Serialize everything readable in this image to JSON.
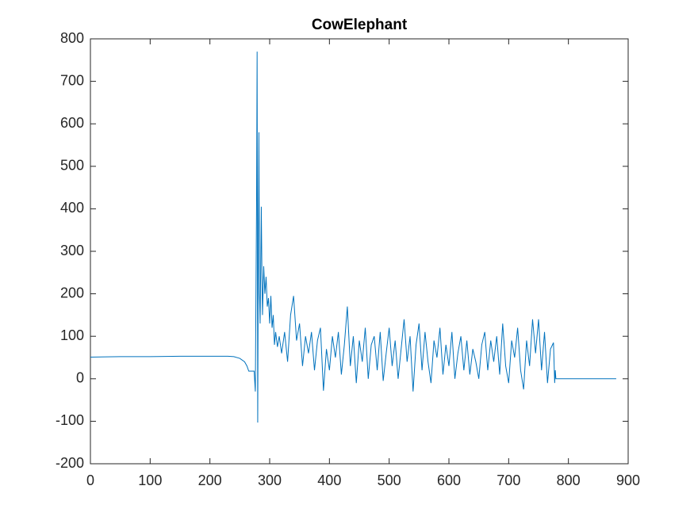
{
  "chart_data": {
    "type": "line",
    "title": "CowElephant",
    "x": [
      0,
      50,
      100,
      150,
      200,
      230,
      240,
      250,
      258,
      262,
      265,
      270,
      274,
      276,
      278,
      279,
      280,
      281,
      282,
      283,
      284,
      286,
      287,
      288,
      290,
      292,
      294,
      296,
      298,
      300,
      302,
      304,
      306,
      308,
      310,
      313,
      316,
      320,
      325,
      330,
      335,
      340,
      345,
      350,
      355,
      360,
      365,
      370,
      375,
      380,
      385,
      390,
      395,
      400,
      405,
      410,
      415,
      420,
      425,
      430,
      435,
      440,
      445,
      450,
      455,
      460,
      465,
      470,
      475,
      480,
      485,
      490,
      495,
      500,
      505,
      510,
      515,
      520,
      525,
      530,
      535,
      540,
      545,
      550,
      555,
      560,
      565,
      570,
      575,
      580,
      585,
      590,
      595,
      600,
      605,
      610,
      615,
      620,
      625,
      630,
      635,
      640,
      645,
      650,
      655,
      660,
      665,
      670,
      675,
      680,
      685,
      690,
      695,
      700,
      705,
      710,
      715,
      720,
      725,
      730,
      735,
      740,
      745,
      750,
      755,
      760,
      765,
      770,
      775,
      777,
      778,
      779,
      880
    ],
    "series": [
      {
        "name": "CowElephant",
        "color": "#0072BD",
        "values": [
          51,
          52,
          52,
          53,
          53,
          53,
          52,
          48,
          40,
          30,
          18,
          18,
          18,
          -30,
          400,
          770,
          -103,
          300,
          580,
          200,
          130,
          405,
          250,
          150,
          265,
          200,
          240,
          170,
          190,
          130,
          195,
          120,
          150,
          80,
          110,
          75,
          100,
          60,
          110,
          40,
          150,
          195,
          90,
          130,
          30,
          100,
          60,
          110,
          20,
          90,
          120,
          -28,
          70,
          20,
          100,
          50,
          110,
          10,
          80,
          170,
          30,
          100,
          -10,
          90,
          40,
          120,
          0,
          80,
          100,
          20,
          110,
          -5,
          60,
          120,
          30,
          90,
          0,
          70,
          140,
          40,
          100,
          -30,
          80,
          130,
          20,
          110,
          40,
          -10,
          90,
          50,
          120,
          10,
          80,
          30,
          110,
          0,
          60,
          100,
          20,
          90,
          10,
          70,
          40,
          0,
          80,
          110,
          20,
          90,
          40,
          100,
          10,
          130,
          30,
          -10,
          90,
          50,
          120,
          20,
          -25,
          90,
          30,
          140,
          60,
          140,
          20,
          110,
          -10,
          70,
          85,
          -10,
          20,
          0,
          0
        ]
      }
    ],
    "xlim": [
      0,
      900
    ],
    "xticks": [
      0,
      100,
      200,
      300,
      400,
      500,
      600,
      700,
      800,
      900
    ],
    "ylim": [
      -200,
      800
    ],
    "yticks": [
      -200,
      -100,
      0,
      100,
      200,
      300,
      400,
      500,
      600,
      700,
      800
    ]
  }
}
